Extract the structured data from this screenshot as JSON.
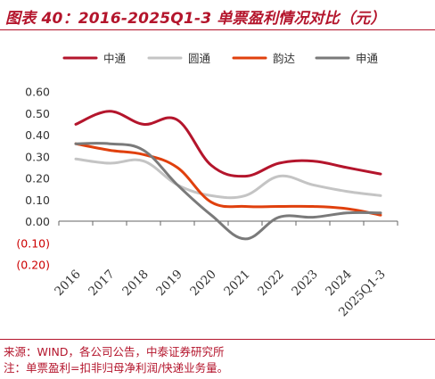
{
  "title": "图表 40：2016-2025Q1-3 单票盈利情况对比（元）",
  "footer": {
    "source": "来源：WIND，各公司公告，中泰证券研究所",
    "note": "注：单票盈利=扣非归母净利润/快递业务量。"
  },
  "colors": {
    "accent": "#b4152c",
    "zto": "#b4152c",
    "yto": "#c4c4c4",
    "yunda": "#e0400d",
    "sto": "#7a7a7a"
  },
  "chart_data": {
    "type": "line",
    "categories": [
      "2016",
      "2017",
      "2018",
      "2019",
      "2020",
      "2021",
      "2022",
      "2023",
      "2024",
      "2025Q1-3"
    ],
    "ylim": [
      -0.2,
      0.6
    ],
    "yticks": [
      0.6,
      0.5,
      0.4,
      0.3,
      0.2,
      0.1,
      0.0,
      -0.1,
      -0.2
    ],
    "ytick_labels": [
      "0.60",
      "0.50",
      "0.40",
      "0.30",
      "0.20",
      "0.10",
      "0.00",
      "(0.10)",
      "(0.20)"
    ],
    "legend_position": "top",
    "grid": false,
    "series": [
      {
        "name": "中通",
        "color": "#b4152c",
        "values": [
          0.45,
          0.51,
          0.45,
          0.47,
          0.26,
          0.21,
          0.27,
          0.28,
          0.25,
          0.22
        ]
      },
      {
        "name": "圆通",
        "color": "#c4c4c4",
        "values": [
          0.29,
          0.27,
          0.28,
          0.17,
          0.12,
          0.12,
          0.21,
          0.17,
          0.14,
          0.12
        ]
      },
      {
        "name": "韵达",
        "color": "#e0400d",
        "values": [
          0.36,
          0.33,
          0.31,
          0.25,
          0.09,
          0.07,
          0.07,
          0.07,
          0.06,
          0.03
        ]
      },
      {
        "name": "申通",
        "color": "#7a7a7a",
        "values": [
          0.36,
          0.36,
          0.33,
          0.17,
          0.03,
          -0.08,
          0.02,
          0.02,
          0.04,
          0.04
        ]
      }
    ]
  }
}
